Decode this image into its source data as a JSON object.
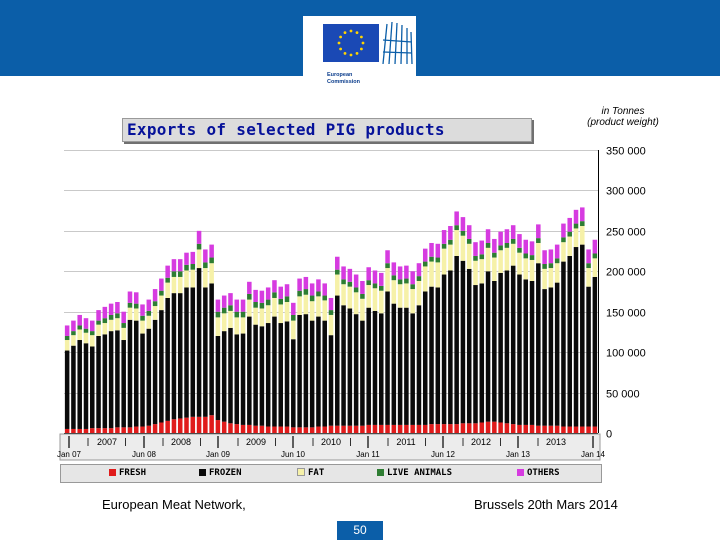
{
  "header": {
    "logo_text_line1": "European",
    "logo_text_line2": "Commission"
  },
  "footer": {
    "left": "European Meat Network,",
    "right": "Brussels 20th Mars 2014",
    "page": "50"
  },
  "colors": {
    "fresh": "#e01b1b",
    "frozen": "#0a0a0a",
    "fat": "#f6f1a8",
    "live_animals": "#2e7d32",
    "others": "#d63be0"
  },
  "chart_data": {
    "type": "bar",
    "stacked": true,
    "title": "Exports of selected PIG products",
    "units_line1": "in Tonnes",
    "units_line2": "(product weight)",
    "ylim": [
      0,
      350000
    ],
    "yticks": [
      "0",
      "50 000",
      "100 000",
      "150 000",
      "200 000",
      "250 000",
      "300 000",
      "350 000"
    ],
    "ytick_values": [
      0,
      50000,
      100000,
      150000,
      200000,
      250000,
      300000,
      350000
    ],
    "year_labels": [
      "2007",
      "2008",
      "2009",
      "2010",
      "2011",
      "2012",
      "2013"
    ],
    "edge_labels": [
      "Jan 07",
      "Jun 08",
      "Jan 09",
      "Jun 10",
      "Jan 11",
      "Jun 12",
      "Jan 13",
      "Jan 14"
    ],
    "categories_start": "Jan 2007",
    "categories_end": "Jan 2014",
    "series": [
      {
        "name": "FRESH",
        "values": [
          5000,
          5000,
          5000,
          5000,
          6000,
          6000,
          6000,
          6000,
          7000,
          7000,
          7000,
          8000,
          8000,
          9000,
          11000,
          13000,
          15000,
          17000,
          18000,
          19000,
          20000,
          20000,
          20000,
          22000,
          16000,
          14000,
          12000,
          11000,
          10000,
          10000,
          9000,
          9000,
          8000,
          8000,
          8000,
          8000,
          7000,
          7000,
          7000,
          7000,
          8000,
          8000,
          9000,
          9000,
          9000,
          9000,
          9000,
          9000,
          10000,
          10000,
          10000,
          10000,
          10000,
          10000,
          10000,
          10000,
          10000,
          10000,
          11000,
          11000,
          11000,
          11000,
          11000,
          12000,
          12000,
          12000,
          13000,
          14000,
          14000,
          13000,
          12000,
          11000,
          10000,
          10000,
          10000,
          9000,
          9000,
          9000,
          9000,
          8000,
          8000,
          8000,
          8000,
          8000,
          8000
        ]
      },
      {
        "name": "FROZEN",
        "values": [
          97000,
          103000,
          110000,
          106000,
          101000,
          114000,
          116000,
          120000,
          120000,
          108000,
          133000,
          131000,
          115000,
          120000,
          129000,
          139000,
          152000,
          156000,
          155000,
          161000,
          160000,
          184000,
          160000,
          163000,
          104000,
          112000,
          118000,
          111000,
          113000,
          134000,
          125000,
          123000,
          128000,
          136000,
          128000,
          130000,
          109000,
          139000,
          140000,
          132000,
          136000,
          131000,
          112000,
          161000,
          149000,
          145000,
          138000,
          130000,
          145000,
          141000,
          138000,
          165000,
          150000,
          145000,
          145000,
          138000,
          148000,
          165000,
          170000,
          169000,
          185000,
          190000,
          208000,
          201000,
          191000,
          171000,
          172000,
          186000,
          174000,
          185000,
          189000,
          196000,
          186000,
          180000,
          178000,
          201000,
          169000,
          171000,
          177000,
          204000,
          211000,
          222000,
          225000,
          173000,
          185000
        ]
      },
      {
        "name": "FAT",
        "values": [
          13000,
          13000,
          13000,
          13000,
          14000,
          14000,
          14000,
          14000,
          15000,
          15000,
          15000,
          15000,
          16000,
          16000,
          17000,
          18000,
          19000,
          20000,
          20000,
          21000,
          22000,
          23000,
          24000,
          25000,
          23000,
          22000,
          21000,
          21000,
          20000,
          21000,
          21000,
          22000,
          22000,
          23000,
          23000,
          24000,
          23000,
          23000,
          24000,
          24000,
          25000,
          25000,
          25000,
          26000,
          26000,
          27000,
          27000,
          27000,
          28000,
          28000,
          28000,
          29000,
          29000,
          29000,
          30000,
          30000,
          30000,
          31000,
          31000,
          31000,
          32000,
          32000,
          32000,
          31000,
          31000,
          30000,
          30000,
          29000,
          29000,
          28000,
          28000,
          27000,
          27000,
          26000,
          26000,
          25000,
          25000,
          24000,
          24000,
          24000,
          24000,
          23000,
          23000,
          23000,
          23000
        ]
      },
      {
        "name": "LIVE ANIMALS",
        "values": [
          5000,
          5000,
          5000,
          5000,
          5000,
          5000,
          6000,
          6000,
          6000,
          6000,
          6000,
          6000,
          6000,
          6000,
          6000,
          6000,
          6000,
          7000,
          7000,
          7000,
          7000,
          7000,
          7000,
          7000,
          7000,
          7000,
          7000,
          7000,
          7000,
          7000,
          7000,
          7000,
          7000,
          7000,
          7000,
          7000,
          7000,
          7000,
          7000,
          7000,
          6000,
          6000,
          6000,
          6000,
          6000,
          6000,
          6000,
          6000,
          6000,
          6000,
          6000,
          6000,
          6000,
          6000,
          6000,
          6000,
          6000,
          6000,
          6000,
          6000,
          6000,
          6000,
          6000,
          6000,
          6000,
          6000,
          6000,
          6000,
          6000,
          6000,
          6000,
          6000,
          6000,
          6000,
          6000,
          6000,
          6000,
          6000,
          6000,
          6000,
          6000,
          6000,
          6000,
          6000,
          6000
        ]
      },
      {
        "name": "OTHERS",
        "values": [
          13000,
          13000,
          13000,
          13000,
          13000,
          13000,
          14000,
          14000,
          14000,
          14000,
          14000,
          14000,
          14000,
          14000,
          15000,
          15000,
          15000,
          15000,
          15000,
          15000,
          15000,
          16000,
          16000,
          16000,
          15000,
          15000,
          15000,
          15000,
          15000,
          15000,
          15000,
          15000,
          15000,
          15000,
          15000,
          15000,
          15000,
          15000,
          15000,
          15000,
          15000,
          15000,
          15000,
          16000,
          16000,
          16000,
          16000,
          16000,
          16000,
          16000,
          16000,
          16000,
          16000,
          16000,
          16000,
          16000,
          16000,
          16000,
          17000,
          17000,
          17000,
          17000,
          17000,
          17000,
          17000,
          17000,
          17000,
          17000,
          17000,
          17000,
          17000,
          17000,
          17000,
          17000,
          17000,
          17000,
          17000,
          17000,
          17000,
          17000,
          17000,
          17000,
          17000,
          17000,
          17000
        ]
      }
    ]
  }
}
